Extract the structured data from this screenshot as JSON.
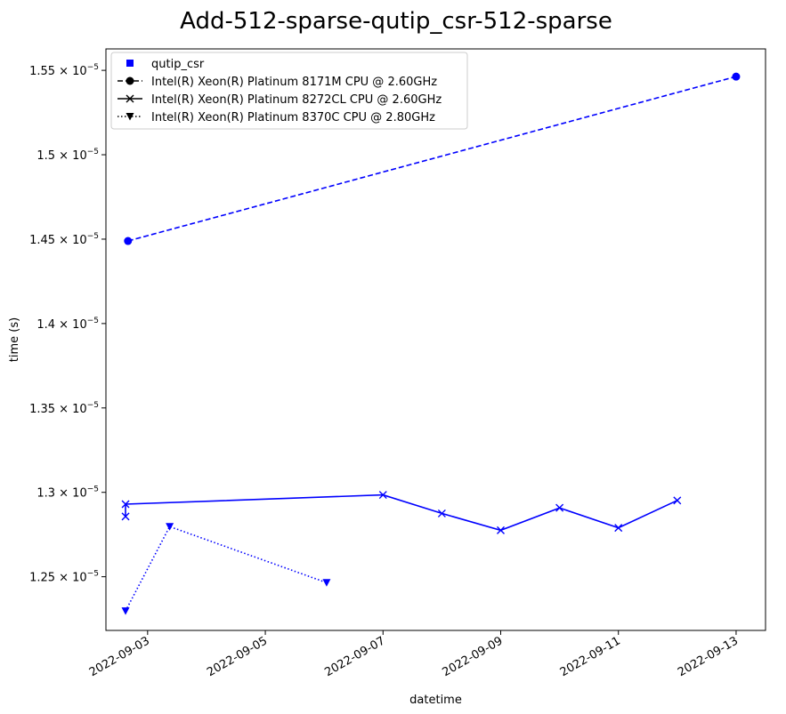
{
  "chart_data": {
    "type": "line",
    "title": "Add-512-sparse-qutip_csr-512-sparse",
    "xlabel": "datetime",
    "ylabel": "time (s)",
    "x_axis_type": "date",
    "xlim": [
      "2022-09-02T07:00",
      "2022-09-13T12:00"
    ],
    "ylim": [
      1.2182e-05,
      1.5627e-05
    ],
    "x_ticks": [
      {
        "value": "2022-09-03",
        "label": "2022-09-03"
      },
      {
        "value": "2022-09-05",
        "label": "2022-09-05"
      },
      {
        "value": "2022-09-07",
        "label": "2022-09-07"
      },
      {
        "value": "2022-09-09",
        "label": "2022-09-09"
      },
      {
        "value": "2022-09-11",
        "label": "2022-09-11"
      },
      {
        "value": "2022-09-13",
        "label": "2022-09-13"
      }
    ],
    "y_ticks": [
      {
        "value": 1.25e-05,
        "mantissa": "1.25",
        "exponent": "−5"
      },
      {
        "value": 1.3e-05,
        "mantissa": "1.3",
        "exponent": "−5"
      },
      {
        "value": 1.35e-05,
        "mantissa": "1.35",
        "exponent": "−5"
      },
      {
        "value": 1.4e-05,
        "mantissa": "1.4",
        "exponent": "−5"
      },
      {
        "value": 1.45e-05,
        "mantissa": "1.45",
        "exponent": "−5"
      },
      {
        "value": 1.5e-05,
        "mantissa": "1.5",
        "exponent": "−5"
      },
      {
        "value": 1.55e-05,
        "mantissa": "1.55",
        "exponent": "−5"
      }
    ],
    "tick_base": "10",
    "legend_position": "upper left",
    "grid": false,
    "color": "#0000ff",
    "legend": [
      {
        "label": "qutip_csr",
        "marker": "square",
        "linestyle": "none"
      },
      {
        "label": "Intel(R) Xeon(R) Platinum 8171M CPU @ 2.60GHz",
        "marker": "circle",
        "linestyle": "dashed"
      },
      {
        "label": "Intel(R) Xeon(R) Platinum 8272CL CPU @ 2.60GHz",
        "marker": "x",
        "linestyle": "solid"
      },
      {
        "label": "Intel(R) Xeon(R) Platinum 8370C CPU @ 2.80GHz",
        "marker": "triangle-down",
        "linestyle": "dotted"
      }
    ],
    "series": [
      {
        "name": "Intel(R) Xeon(R) Platinum 8171M CPU @ 2.60GHz",
        "marker": "circle",
        "linestyle": "dashed",
        "points": [
          {
            "x": "2022-09-02T16:00",
            "y": 1.4489e-05
          },
          {
            "x": "2022-09-13T00:00",
            "y": 1.5463e-05
          }
        ]
      },
      {
        "name": "Intel(R) Xeon(R) Platinum 8272CL CPU @ 2.60GHz",
        "marker": "x",
        "linestyle": "solid",
        "points": [
          {
            "x": "2022-09-02T15:00",
            "y": 1.2857e-05
          },
          {
            "x": "2022-09-02T15:00",
            "y": 1.293e-05
          },
          {
            "x": "2022-09-07T00:00",
            "y": 1.2985e-05
          },
          {
            "x": "2022-09-08T00:00",
            "y": 1.2875e-05
          },
          {
            "x": "2022-09-09T00:00",
            "y": 1.2775e-05
          },
          {
            "x": "2022-09-10T00:00",
            "y": 1.2908e-05
          },
          {
            "x": "2022-09-11T00:00",
            "y": 1.279e-05
          },
          {
            "x": "2022-09-12T00:00",
            "y": 1.2952e-05
          }
        ]
      },
      {
        "name": "Intel(R) Xeon(R) Platinum 8370C CPU @ 2.80GHz",
        "marker": "triangle-down",
        "linestyle": "dotted",
        "points": [
          {
            "x": "2022-09-02T15:00",
            "y": 1.2297e-05
          },
          {
            "x": "2022-09-03T09:00",
            "y": 1.2797e-05
          },
          {
            "x": "2022-09-06T01:00",
            "y": 1.2465e-05
          }
        ]
      }
    ]
  }
}
